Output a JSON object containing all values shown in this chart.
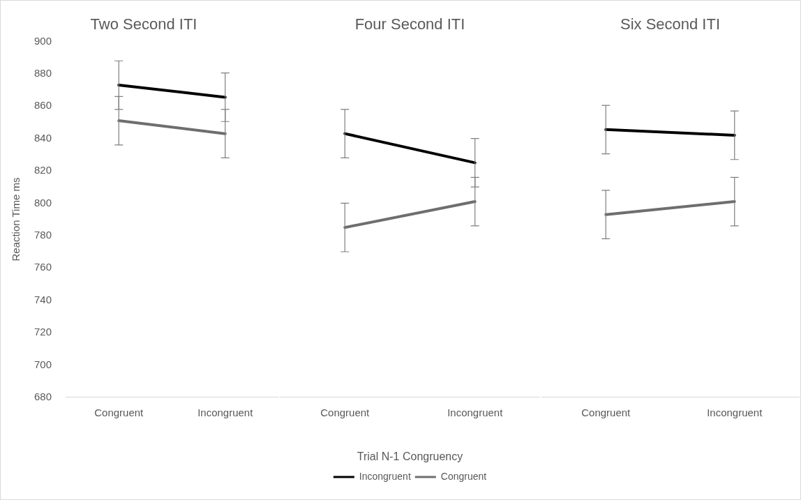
{
  "chart_data": [
    {
      "type": "line",
      "title": "Two Second ITI",
      "ylabel": "Reaction Time ms",
      "categories": [
        "Congruent",
        "Incongruent"
      ],
      "ylim": [
        680,
        900
      ],
      "yticks": [
        680,
        700,
        720,
        740,
        760,
        780,
        800,
        820,
        840,
        860,
        880,
        900
      ],
      "series": [
        {
          "color": "#000000",
          "values": [
            873,
            865.5
          ],
          "errors": [
            15,
            15
          ]
        },
        {
          "color": "#6e6e6e",
          "values": [
            851,
            843
          ],
          "errors": [
            15,
            15
          ]
        }
      ]
    },
    {
      "type": "line",
      "title": "Four Second ITI",
      "xlabel": "Trial N-1 Congruency",
      "legend": "bottom",
      "tick_labels": "x",
      "categories": [
        "Congruent",
        "Incongruent"
      ],
      "ylim": [
        680,
        900
      ],
      "yticks": [
        680,
        700,
        720,
        740,
        760,
        780,
        800,
        820,
        840,
        860,
        880,
        900
      ],
      "series": [
        {
          "name": "Incongruent",
          "color": "#000000",
          "values": [
            843,
            825
          ],
          "errors": [
            15,
            15
          ]
        },
        {
          "name": "Congruent",
          "color": "#6e6e6e",
          "values": [
            785,
            801
          ],
          "errors": [
            15,
            15
          ]
        }
      ]
    },
    {
      "type": "line",
      "title": "Six Second ITI",
      "tick_labels": "x",
      "categories": [
        "Congruent",
        "Incongruent"
      ],
      "ylim": [
        680,
        900
      ],
      "yticks": [
        680,
        700,
        720,
        740,
        760,
        780,
        800,
        820,
        840,
        860,
        880,
        900
      ],
      "series": [
        {
          "color": "#000000",
          "values": [
            845.5,
            842
          ],
          "errors": [
            15,
            15
          ]
        },
        {
          "color": "#6e6e6e",
          "values": [
            793,
            801
          ],
          "errors": [
            15,
            15
          ]
        }
      ]
    }
  ]
}
